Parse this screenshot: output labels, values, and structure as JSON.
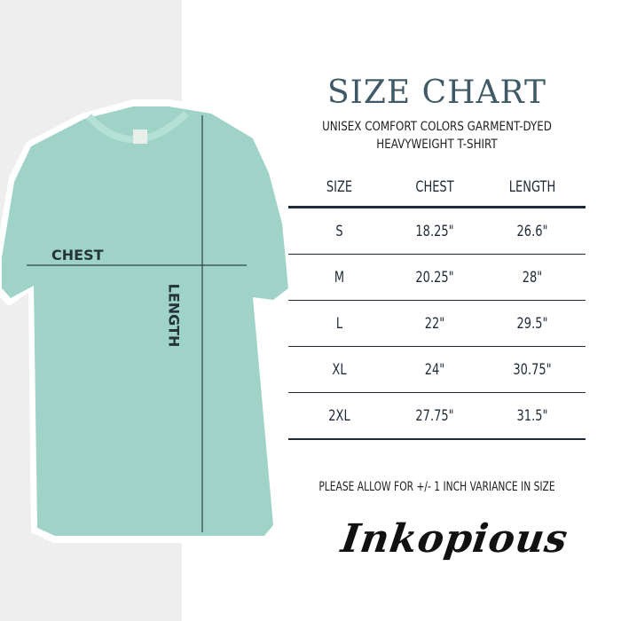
{
  "title": "SIZE CHART",
  "subtitle_line1": "UNISEX COMFORT COLORS GARMENT-DYED",
  "subtitle_line2": "HEAVYWEIGHT T-SHIRT",
  "shirt": {
    "color": "#9fd3c7",
    "chest_label": "CHEST",
    "length_label": "LENGTH"
  },
  "table": {
    "headers": [
      "SIZE",
      "CHEST",
      "LENGTH"
    ],
    "rows": [
      [
        "S",
        "18.25\"",
        "26.6\""
      ],
      [
        "M",
        "20.25\"",
        "28\""
      ],
      [
        "L",
        "22\"",
        "29.5\""
      ],
      [
        "XL",
        "24\"",
        "30.75\""
      ],
      [
        "2XL",
        "27.75\"",
        "31.5\""
      ]
    ]
  },
  "note": "PLEASE ALLOW FOR +/- 1 INCH VARIANCE IN SIZE",
  "brand": "Inkopious"
}
